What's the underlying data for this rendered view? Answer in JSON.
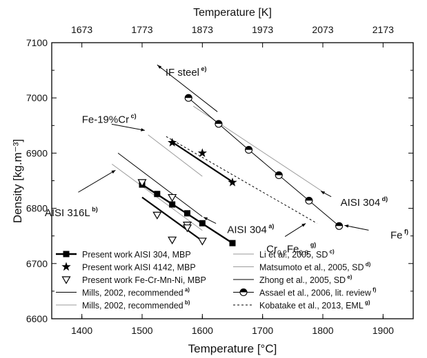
{
  "chart_data": {
    "type": "line",
    "xlabel": "Temperature [°C]",
    "ylabel": "Density [kg.m⁻³]",
    "x2label": "Temperature [K]",
    "xlim": [
      1350,
      1950
    ],
    "ylim": [
      6600,
      7100
    ],
    "xticks": [
      1400,
      1500,
      1600,
      1700,
      1800,
      1900
    ],
    "yticks": [
      6600,
      6700,
      6800,
      6900,
      7000,
      7100
    ],
    "x2ticks": [
      1673,
      1773,
      1873,
      1973,
      2073,
      2173
    ],
    "grid": false,
    "legend_position": "bottom",
    "series": [
      {
        "name": "Present work AISI 304, MBP",
        "sup": "",
        "color": "#000000",
        "marker": "square",
        "line": "solid",
        "width": 2.4,
        "x": [
          1500,
          1525,
          1550,
          1575,
          1600,
          1650
        ],
        "y": [
          6843,
          6826,
          6807,
          6791,
          6773,
          6737
        ],
        "show_line": false
      },
      {
        "name": "",
        "sup": "",
        "color": "#000000",
        "marker": "none",
        "line": "solid",
        "width": 2.4,
        "x": [
          1500,
          1650
        ],
        "y": [
          6843,
          6737
        ],
        "show_line": true
      },
      {
        "name": "Present work AISI 4142, MBP",
        "sup": "",
        "color": "#000000",
        "marker": "star",
        "line": "none",
        "x": [
          1550,
          1600,
          1650
        ],
        "y": [
          6919,
          6900,
          6847
        ]
      },
      {
        "name": "Present work Fe-Cr-Mn-Ni, MBP",
        "sup": "",
        "color": "#000000",
        "marker": "triangle-down",
        "line": "none",
        "x": [
          1500,
          1525,
          1550,
          1550,
          1575,
          1575,
          1600
        ],
        "y": [
          6847,
          6788,
          6820,
          6743,
          6770,
          6765,
          6741
        ]
      },
      {
        "name": "",
        "sup": "",
        "color": "#000000",
        "marker": "none",
        "line": "solid",
        "width": 2.2,
        "x": [
          1500,
          1600
        ],
        "y": [
          6820,
          6741
        ]
      },
      {
        "name": "",
        "sup": "",
        "color": "#000000",
        "marker": "none",
        "line": "solid",
        "width": 2.2,
        "x": [
          1550,
          1650
        ],
        "y": [
          6920,
          6848
        ]
      },
      {
        "name": "Mills, 2002, recommended",
        "sup": "a)",
        "color": "#000000",
        "marker": "none",
        "line": "solid",
        "width": 1,
        "x": [
          1460,
          1600
        ],
        "y": [
          6900,
          6785
        ]
      },
      {
        "name": "Mills, 2002, recommended",
        "sup": "b)",
        "color": "#9a9a9a",
        "marker": "none",
        "line": "solid",
        "width": 1,
        "x": [
          1450,
          1600
        ],
        "y": [
          6880,
          6760
        ]
      },
      {
        "name": "Li et al., 2005, SD",
        "sup": "c)",
        "color": "#9a9a9a",
        "marker": "none",
        "line": "solid",
        "width": 1,
        "x": [
          1510,
          1600
        ],
        "y": [
          6933,
          6858
        ]
      },
      {
        "name": "Matsumoto et al., 2005, SD",
        "sup": "d)",
        "color": "#9a9a9a",
        "marker": "none",
        "line": "solid",
        "width": 1,
        "x": [
          1585,
          1800
        ],
        "y": [
          6985,
          6830
        ]
      },
      {
        "name": "Zhong et al., 2005, SD",
        "sup": "e)",
        "color": "#000000",
        "marker": "none",
        "line": "solid",
        "width": 1,
        "x": [
          1525,
          1625
        ],
        "y": [
          7060,
          6975
        ]
      },
      {
        "name": "Assael et al., 2006, lit. review",
        "sup": "f)",
        "color": "#000000",
        "marker": "half-circle",
        "line": "solid",
        "width": 1,
        "x": [
          1577,
          1627,
          1677,
          1727,
          1777,
          1827
        ],
        "y": [
          7000,
          6953,
          6906,
          6860,
          6814,
          6768
        ]
      },
      {
        "name": "Kobatake et al., 2013, EML",
        "sup": "g)",
        "color": "#000000",
        "marker": "none",
        "line": "dashed",
        "width": 1,
        "x": [
          1540,
          1790
        ],
        "y": [
          6930,
          6773
        ]
      }
    ],
    "annotations": [
      {
        "text": "e)",
        "main": "IF steel",
        "x": 1525,
        "y": 7060,
        "dx": 12,
        "dy": 10,
        "arrow": true
      },
      {
        "text": "c)",
        "main": "Fe-19%Cr",
        "x": 1510,
        "y": 6940,
        "dx": -96,
        "dy": -18,
        "arrow": true
      },
      {
        "text": "d)",
        "main": "AISI 304",
        "x": 1795,
        "y": 6832,
        "dx": 30,
        "dy": 16,
        "arrow": true
      },
      {
        "text": "a)",
        "main": "AISI 304",
        "x": 1600,
        "y": 6785,
        "dx": 36,
        "dy": 18,
        "arrow": true
      },
      {
        "text": "b)",
        "main": "AISI 316L",
        "x": 1462,
        "y": 6873,
        "dx": -108,
        "dy": 64,
        "arrow": true
      },
      {
        "text": "f)",
        "main": "Fe",
        "x": 1832,
        "y": 6770,
        "dx": 70,
        "dy": 14,
        "arrow": true
      },
      {
        "text": "g)",
        "main": "Cr",
        "sub1": "0.2",
        "main2": "Fe",
        "sub2": "0.8",
        "x": 1775,
        "y": 6775,
        "dx": -60,
        "dy": 38,
        "arrow": true
      }
    ]
  }
}
